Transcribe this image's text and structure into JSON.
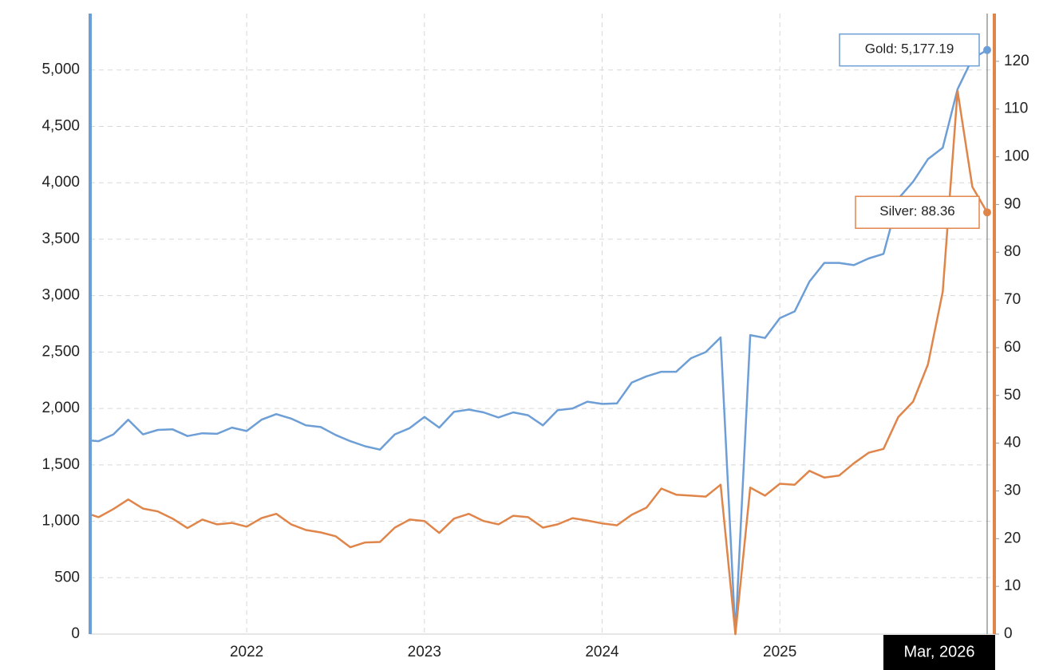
{
  "chart_data": {
    "type": "line",
    "categories": [
      null,
      null,
      null,
      null,
      null,
      null,
      null,
      null,
      null,
      null,
      null,
      "2022",
      null,
      null,
      null,
      null,
      null,
      null,
      null,
      null,
      null,
      null,
      null,
      "2023",
      null,
      null,
      null,
      null,
      null,
      null,
      null,
      null,
      null,
      null,
      null,
      "2024",
      null,
      null,
      null,
      null,
      null,
      null,
      null,
      null,
      null,
      null,
      null,
      "2025",
      null,
      null,
      null,
      null,
      null,
      null,
      null,
      null,
      null,
      null,
      null,
      null,
      null,
      "Mar, 2026"
    ],
    "series": [
      {
        "name": "Gold",
        "color": "#6d9ed6",
        "axis": "y",
        "values": [
          1720,
          1710,
          1770,
          1900,
          1770,
          1810,
          1815,
          1755,
          1780,
          1775,
          1830,
          1800,
          1900,
          1950,
          1910,
          1850,
          1835,
          1765,
          1710,
          1665,
          1635,
          1770,
          1825,
          1925,
          1830,
          1970,
          1990,
          1965,
          1920,
          1965,
          1940,
          1850,
          1985,
          2000,
          2060,
          2040,
          2045,
          2230,
          2285,
          2325,
          2325,
          2445,
          2500,
          2630,
          0,
          2650,
          2625,
          2800,
          2860,
          3125,
          3290,
          3290,
          3270,
          3330,
          3370,
          3860,
          4010,
          4210,
          4310,
          4830,
          5100,
          5177.19
        ],
        "value_labels": [
          null,
          null,
          null,
          null,
          null,
          null,
          null,
          null,
          null,
          null,
          null,
          null,
          null,
          null,
          null,
          null,
          null,
          null,
          null,
          null,
          null,
          null,
          null,
          null,
          null,
          null,
          null,
          null,
          null,
          null,
          null,
          null,
          null,
          null,
          null,
          null,
          null,
          null,
          null,
          null,
          null,
          null,
          null,
          null,
          null,
          null,
          null,
          null,
          null,
          null,
          null,
          null,
          null,
          null,
          null,
          null,
          null,
          null,
          null,
          null,
          null,
          "5,177.19"
        ]
      },
      {
        "name": "Silver",
        "color": "#e0854a",
        "axis": "y2",
        "values": [
          25.5,
          24.5,
          26.2,
          28.2,
          26.3,
          25.7,
          24.2,
          22.2,
          24,
          23,
          23.3,
          22.5,
          24.3,
          25.2,
          23,
          21.8,
          21.3,
          20.5,
          18.2,
          19.2,
          19.3,
          22.3,
          24,
          23.7,
          21.2,
          24.2,
          25.2,
          23.7,
          23,
          24.8,
          24.5,
          22.3,
          23,
          24.3,
          23.8,
          23.2,
          22.8,
          25,
          26.5,
          30.5,
          29.2,
          29,
          28.8,
          31.3,
          0,
          30.7,
          29,
          31.5,
          31.3,
          34.2,
          32.8,
          33.2,
          35.8,
          38,
          38.8,
          45.5,
          48.7,
          56.5,
          71.7,
          113.8,
          93.7,
          88.36
        ],
        "value_labels": [
          null,
          null,
          null,
          null,
          null,
          null,
          null,
          null,
          null,
          null,
          null,
          null,
          null,
          null,
          null,
          null,
          null,
          null,
          null,
          null,
          null,
          null,
          null,
          null,
          null,
          null,
          null,
          null,
          null,
          null,
          null,
          null,
          null,
          null,
          null,
          null,
          null,
          null,
          null,
          null,
          null,
          null,
          null,
          null,
          null,
          null,
          null,
          null,
          null,
          null,
          null,
          null,
          null,
          null,
          null,
          null,
          null,
          null,
          null,
          null,
          null,
          "88.36"
        ]
      }
    ],
    "ylim": [
      0,
      5500
    ],
    "yticks": [
      0,
      500,
      {
        "value": 1000,
        "label": "1,000"
      },
      {
        "value": 1500,
        "label": "1,500"
      },
      {
        "value": 2000,
        "label": "2,000"
      },
      {
        "value": 2500,
        "label": "2,500"
      },
      {
        "value": 3000,
        "label": "3,000"
      },
      {
        "value": 3500,
        "label": "3,500"
      },
      {
        "value": 4000,
        "label": "4,000"
      },
      {
        "value": 4500,
        "label": "4,500"
      },
      {
        "value": 5000,
        "label": "5,000"
      }
    ],
    "y2lim": [
      0,
      130
    ],
    "y2ticks": [
      0,
      10,
      20,
      30,
      40,
      50,
      60,
      70,
      80,
      90,
      100,
      110,
      120
    ],
    "grid": true
  }
}
